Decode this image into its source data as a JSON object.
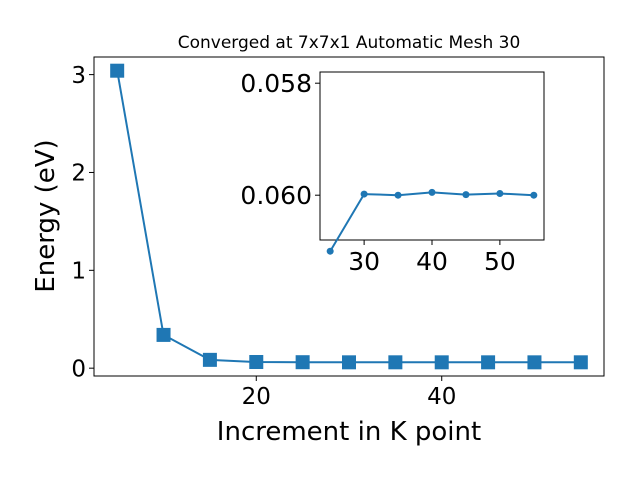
{
  "chart_data": [
    {
      "type": "line",
      "title": "Converged at 7x7x1 Automatic Mesh 30",
      "xlabel": "Increment in K point",
      "ylabel": "Energy (eV)",
      "xlim": [
        2.5,
        57.5
      ],
      "ylim": [
        -0.08,
        3.18
      ],
      "xticks": [
        20,
        40
      ],
      "yticks": [
        0,
        1,
        2,
        3
      ],
      "grid": false,
      "legend": "none",
      "marker": "square",
      "color": "#1f77b4",
      "series": [
        {
          "x": [
            5,
            10,
            15,
            20,
            25,
            30,
            35,
            40,
            45,
            50,
            55
          ],
          "y": [
            3.04,
            0.34,
            0.085,
            0.063,
            0.061,
            0.0598,
            0.0599,
            0.0597,
            0.0598,
            0.0597,
            0.0599
          ]
        }
      ]
    },
    {
      "type": "line",
      "title": "",
      "inset": true,
      "xlabel": "",
      "ylabel": "",
      "xlim": [
        23.5,
        56.5
      ],
      "ylim": [
        0.0578,
        0.0608
      ],
      "y_inverted": true,
      "xticks": [
        30,
        40,
        50
      ],
      "yticks": [
        0.058,
        0.06
      ],
      "ytick_labels": [
        "0.058",
        "0.060"
      ],
      "grid": false,
      "legend": "none",
      "marker": "circle",
      "color": "#1f77b4",
      "series": [
        {
          "x": [
            25,
            30,
            35,
            40,
            45,
            50,
            55
          ],
          "y": [
            0.061,
            0.05998,
            0.06,
            0.05995,
            0.05999,
            0.05997,
            0.06
          ]
        }
      ]
    }
  ]
}
